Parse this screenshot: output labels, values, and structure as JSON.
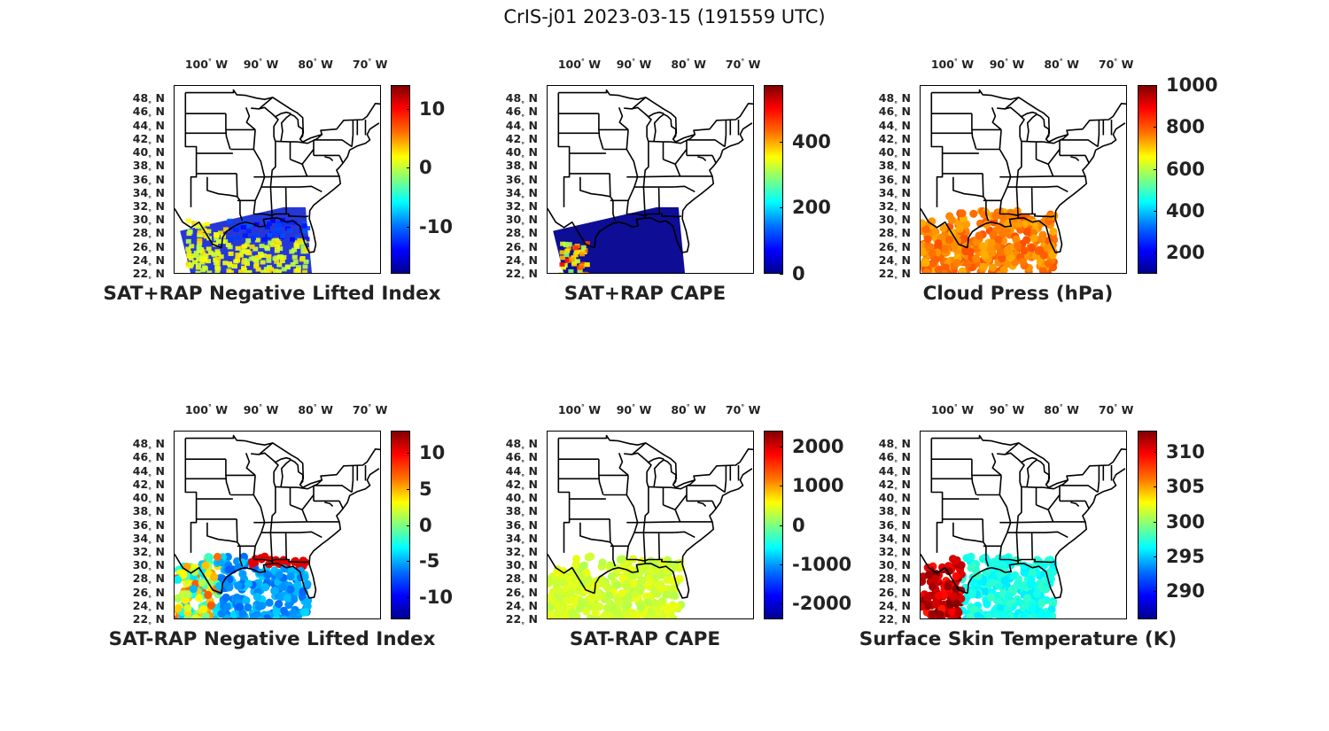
{
  "figure": {
    "title": "CrIS-j01 2023-03-15 (191559 UTC)",
    "lon_labels": [
      "100",
      "90",
      "80",
      "70"
    ],
    "lon_suffix": "W",
    "lat_labels": [
      "48",
      "46",
      "44",
      "42",
      "40",
      "38",
      "36",
      "34",
      "32",
      "30",
      "28",
      "26",
      "24",
      "22"
    ],
    "lat_suffix": "N",
    "degree_symbol": "°"
  },
  "panels": [
    {
      "title": "SAT+RAP Negative Lifted Index",
      "colorbar_ticks": [
        "10",
        "0",
        "-10"
      ],
      "colorbar_tick_values": [
        10,
        0,
        -10
      ],
      "colorbar_range": [
        -18,
        14
      ],
      "coverage": "swath",
      "dominant_color": "#1a2cd6",
      "secondary_color": "#c9e83a"
    },
    {
      "title": "SAT+RAP CAPE",
      "colorbar_ticks": [
        "400",
        "200",
        "0"
      ],
      "colorbar_tick_values": [
        400,
        200,
        0
      ],
      "colorbar_range": [
        0,
        570
      ],
      "coverage": "swath",
      "dominant_color": "#00008f",
      "secondary_color": "#ff6a00"
    },
    {
      "title": "Cloud Press (hPa)",
      "colorbar_ticks": [
        "1000",
        "800",
        "600",
        "400",
        "200"
      ],
      "colorbar_tick_values": [
        1000,
        800,
        600,
        400,
        200
      ],
      "colorbar_range": [
        100,
        1000
      ],
      "coverage": "scatter",
      "dominant_color": "#ff7a00",
      "secondary_color": "#ffd000"
    },
    {
      "title": "SAT-RAP Negative Lifted Index",
      "colorbar_ticks": [
        "10",
        "5",
        "0",
        "-5",
        "-10"
      ],
      "colorbar_tick_values": [
        10,
        5,
        0,
        -5,
        -10
      ],
      "colorbar_range": [
        -13,
        13
      ],
      "coverage": "scatter",
      "dominant_color": "#2b7cf0",
      "secondary_color": "#ff2a00"
    },
    {
      "title": "SAT-RAP CAPE",
      "colorbar_ticks": [
        "2000",
        "1000",
        "0",
        "-1000",
        "-2000"
      ],
      "colorbar_tick_values": [
        2000,
        1000,
        0,
        -1000,
        -2000
      ],
      "colorbar_range": [
        -2400,
        2400
      ],
      "coverage": "scatter",
      "dominant_color": "#7ff27a",
      "secondary_color": "#ffb000"
    },
    {
      "title": "Surface Skin Temperature (K)",
      "colorbar_ticks": [
        "310",
        "305",
        "300",
        "295",
        "290"
      ],
      "colorbar_tick_values": [
        310,
        305,
        300,
        295,
        290
      ],
      "colorbar_range": [
        286,
        313
      ],
      "coverage": "scatter",
      "dominant_color": "#22c8f0",
      "secondary_color": "#b00000"
    }
  ]
}
